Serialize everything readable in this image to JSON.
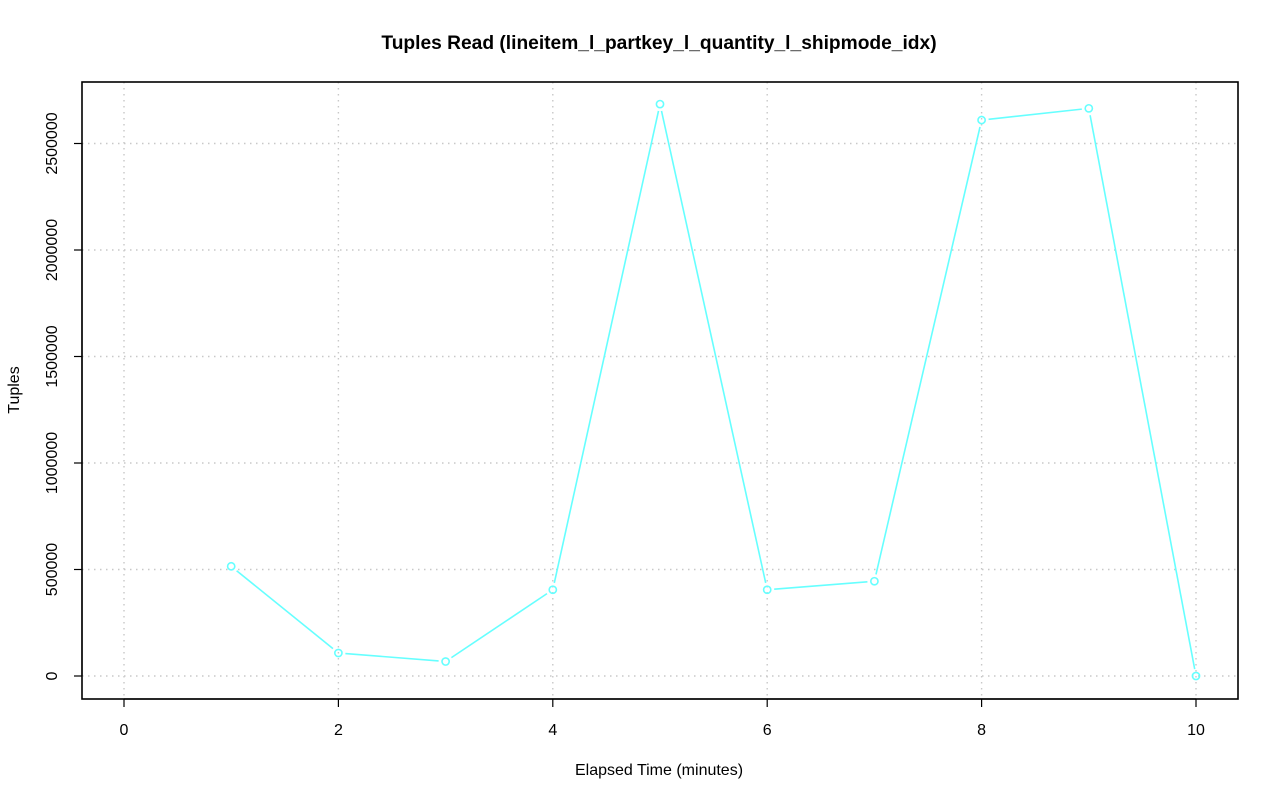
{
  "chart_data": {
    "type": "line",
    "title": "Tuples Read (lineitem_l_partkey_l_quantity_l_shipmode_idx)",
    "xlabel": "Elapsed Time (minutes)",
    "ylabel": "Tuples",
    "xlim": [
      0,
      10
    ],
    "ylim": [
      0,
      2700000
    ],
    "x_ticks": [
      0,
      2,
      4,
      6,
      8,
      10
    ],
    "x_tick_labels": [
      "0",
      "2",
      "4",
      "6",
      "8",
      "10"
    ],
    "y_ticks": [
      0,
      500000,
      1000000,
      1500000,
      2000000,
      2500000
    ],
    "y_tick_labels": [
      "0",
      "500000",
      "1000000",
      "1500000",
      "2000000",
      "2500000"
    ],
    "grid": true,
    "legend": "none",
    "series": [
      {
        "color": "#66ffff",
        "marker": "open-circle",
        "x": [
          1,
          2,
          3,
          4,
          5,
          6,
          7,
          8,
          9,
          10
        ],
        "y": [
          515000,
          108000,
          68000,
          405000,
          2685000,
          405000,
          445000,
          2610000,
          2665000,
          0
        ]
      }
    ]
  }
}
